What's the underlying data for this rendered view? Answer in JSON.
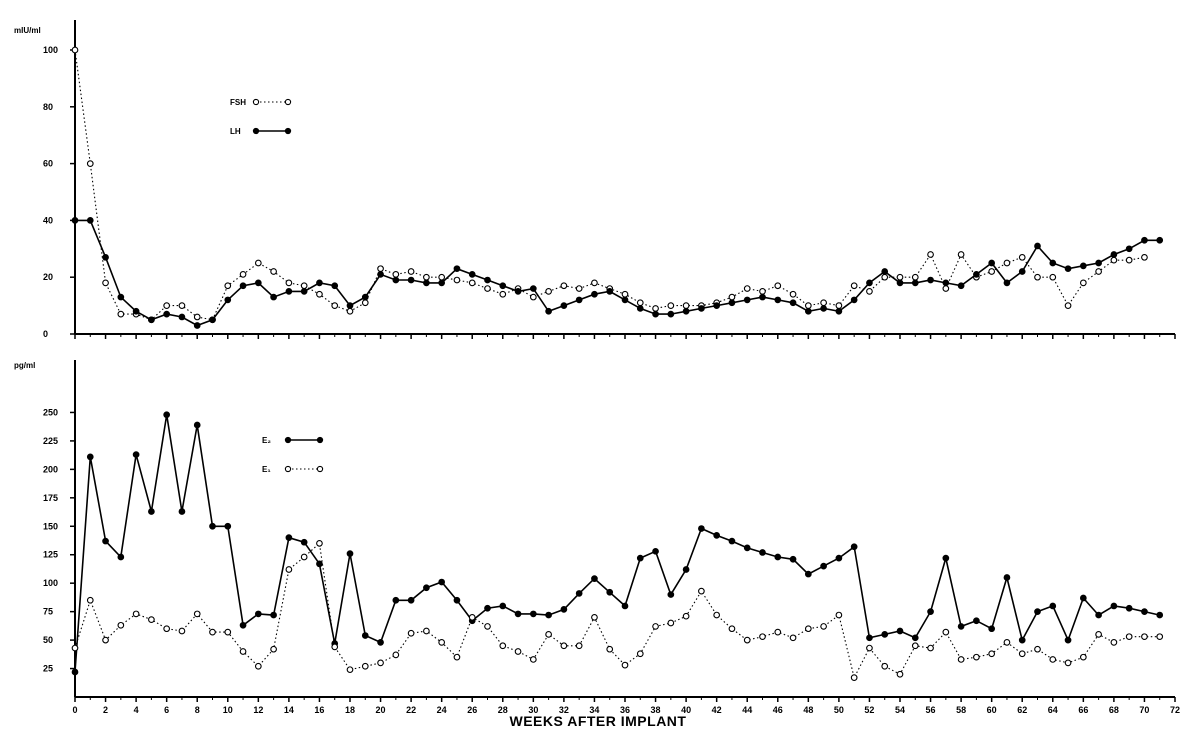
{
  "chart_data": [
    {
      "type": "line",
      "title": "",
      "ylabel": "mIU/ml",
      "xlabel": "",
      "ylim": [
        0,
        100
      ],
      "yticks": [
        0,
        20,
        40,
        60,
        80,
        100
      ],
      "xlim": [
        0,
        72
      ],
      "xticks": [
        0,
        2,
        4,
        6,
        8,
        10,
        12,
        14,
        16,
        18,
        20,
        22,
        24,
        26,
        28,
        30,
        32,
        34,
        36,
        38,
        40,
        42,
        44,
        46,
        48,
        50,
        52,
        54,
        56,
        58,
        60,
        62,
        64,
        66,
        68,
        70,
        72
      ],
      "legend": "upper-left",
      "grid": false,
      "series": [
        {
          "name": "FSH",
          "style": "dotted-open-circle",
          "x": [
            0,
            1,
            2,
            3,
            4,
            5,
            6,
            7,
            8,
            9,
            10,
            11,
            12,
            13,
            14,
            15,
            16,
            17,
            18,
            19,
            20,
            21,
            22,
            23,
            24,
            25,
            26,
            27,
            28,
            29,
            30,
            31,
            32,
            33,
            34,
            35,
            36,
            37,
            38,
            39,
            40,
            41,
            42,
            43,
            44,
            45,
            46,
            47,
            48,
            49,
            50,
            51,
            52,
            53,
            54,
            55,
            56,
            57,
            58,
            59,
            60,
            61,
            62,
            63,
            64,
            65,
            66,
            67,
            68,
            69,
            70
          ],
          "values": [
            100,
            60,
            18,
            7,
            7,
            5,
            10,
            10,
            6,
            5,
            17,
            21,
            25,
            22,
            18,
            17,
            14,
            10,
            8,
            11,
            23,
            21,
            22,
            20,
            20,
            19,
            18,
            16,
            14,
            16,
            13,
            15,
            17,
            16,
            18,
            16,
            14,
            11,
            9,
            10,
            10,
            10,
            11,
            13,
            16,
            15,
            17,
            14,
            10,
            11,
            10,
            17,
            15,
            20,
            20,
            20,
            28,
            16,
            28,
            20,
            22,
            25,
            27,
            20,
            20,
            10,
            18,
            22,
            26,
            26,
            27
          ]
        },
        {
          "name": "LH",
          "style": "solid-filled-circle",
          "x": [
            0,
            1,
            2,
            3,
            4,
            5,
            6,
            7,
            8,
            9,
            10,
            11,
            12,
            13,
            14,
            15,
            16,
            17,
            18,
            19,
            20,
            21,
            22,
            23,
            24,
            25,
            26,
            27,
            28,
            29,
            30,
            31,
            32,
            33,
            34,
            35,
            36,
            37,
            38,
            39,
            40,
            41,
            42,
            43,
            44,
            45,
            46,
            47,
            48,
            49,
            50,
            51,
            52,
            53,
            54,
            55,
            56,
            57,
            58,
            59,
            60,
            61,
            62,
            63,
            64,
            65,
            66,
            67,
            68,
            69,
            70,
            71
          ],
          "values": [
            40,
            40,
            27,
            13,
            8,
            5,
            7,
            6,
            3,
            5,
            12,
            17,
            18,
            13,
            15,
            15,
            18,
            17,
            10,
            13,
            21,
            19,
            19,
            18,
            18,
            23,
            21,
            19,
            17,
            15,
            16,
            8,
            10,
            12,
            14,
            15,
            12,
            9,
            7,
            7,
            8,
            9,
            10,
            11,
            12,
            13,
            12,
            11,
            8,
            9,
            8,
            12,
            18,
            22,
            18,
            18,
            19,
            18,
            17,
            21,
            25,
            18,
            22,
            31,
            25,
            23,
            24,
            25,
            28,
            30,
            33,
            33
          ]
        }
      ]
    },
    {
      "type": "line",
      "title": "",
      "ylabel": "pg/ml",
      "xlabel": "WEEKS AFTER IMPLANT",
      "ylim": [
        0,
        275
      ],
      "yticks": [
        25,
        50,
        75,
        100,
        125,
        150,
        175,
        200,
        225,
        250
      ],
      "ytick_labels": [
        "25",
        "50",
        "75",
        "100",
        "125",
        "150",
        "175",
        "200",
        "225",
        "250"
      ],
      "xlim": [
        0,
        72
      ],
      "xticks": [
        0,
        2,
        4,
        6,
        8,
        10,
        12,
        14,
        16,
        18,
        20,
        22,
        24,
        26,
        28,
        30,
        32,
        34,
        36,
        38,
        40,
        42,
        44,
        46,
        48,
        50,
        52,
        54,
        56,
        58,
        60,
        62,
        64,
        66,
        68,
        70,
        72
      ],
      "xtick_labels": [
        "0",
        "2",
        "4",
        "6",
        "8",
        "10",
        "12",
        "14",
        "16",
        "18",
        "20",
        "22",
        "24",
        "26",
        "28",
        "30",
        "32",
        "34",
        "36",
        "38",
        "40",
        "42",
        "44",
        "46",
        "48",
        "50",
        "52",
        "54",
        "56",
        "58",
        "60",
        "62",
        "64",
        "66",
        "68",
        "70",
        "72"
      ],
      "legend": "upper-left",
      "grid": false,
      "series": [
        {
          "name": "E₂",
          "style": "solid-filled-circle",
          "x": [
            0,
            1,
            2,
            3,
            4,
            5,
            6,
            7,
            8,
            9,
            10,
            11,
            12,
            13,
            14,
            15,
            16,
            17,
            18,
            19,
            20,
            21,
            22,
            23,
            24,
            25,
            26,
            27,
            28,
            29,
            30,
            31,
            32,
            33,
            34,
            35,
            36,
            37,
            38,
            39,
            40,
            41,
            42,
            43,
            44,
            45,
            46,
            47,
            48,
            49,
            50,
            51,
            52,
            53,
            54,
            55,
            56,
            57,
            58,
            59,
            60,
            61,
            62,
            63,
            64,
            65,
            66,
            67,
            68,
            69,
            70,
            71
          ],
          "values": [
            22,
            211,
            137,
            123,
            213,
            163,
            248,
            163,
            239,
            150,
            150,
            63,
            73,
            72,
            140,
            136,
            117,
            47,
            126,
            54,
            48,
            85,
            85,
            96,
            101,
            85,
            67,
            78,
            80,
            73,
            73,
            72,
            77,
            91,
            104,
            92,
            80,
            122,
            128,
            90,
            112,
            148,
            142,
            137,
            131,
            127,
            123,
            121,
            108,
            115,
            122,
            132,
            52,
            55,
            58,
            52,
            75,
            122,
            62,
            67,
            60,
            105,
            50,
            75,
            80,
            50,
            87,
            72,
            80,
            78,
            75,
            72
          ]
        },
        {
          "name": "E₁",
          "style": "dotted-open-circle",
          "x": [
            0,
            1,
            2,
            3,
            4,
            5,
            6,
            7,
            8,
            9,
            10,
            11,
            12,
            13,
            14,
            15,
            16,
            17,
            18,
            19,
            20,
            21,
            22,
            23,
            24,
            25,
            26,
            27,
            28,
            29,
            30,
            31,
            32,
            33,
            34,
            35,
            36,
            37,
            38,
            39,
            40,
            41,
            42,
            43,
            44,
            45,
            46,
            47,
            48,
            49,
            50,
            51,
            52,
            53,
            54,
            55,
            56,
            57,
            58,
            59,
            60,
            61,
            62,
            63,
            64,
            65,
            66,
            67,
            68,
            69,
            70,
            71
          ],
          "values": [
            43,
            85,
            50,
            63,
            73,
            68,
            60,
            58,
            73,
            57,
            57,
            40,
            27,
            42,
            112,
            123,
            135,
            44,
            24,
            27,
            30,
            37,
            56,
            58,
            48,
            35,
            70,
            62,
            45,
            40,
            33,
            55,
            45,
            45,
            70,
            42,
            28,
            38,
            62,
            65,
            71,
            93,
            72,
            60,
            50,
            53,
            57,
            52,
            60,
            62,
            72,
            17,
            43,
            27,
            20,
            45,
            43,
            57,
            33,
            35,
            38,
            48,
            38,
            42,
            33,
            30,
            35,
            55,
            48,
            53,
            53,
            53
          ]
        }
      ]
    }
  ]
}
